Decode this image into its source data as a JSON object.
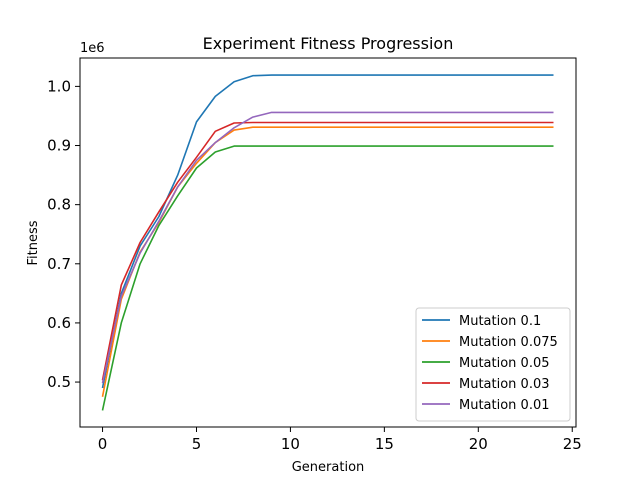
{
  "chart_data": {
    "type": "line",
    "title": "Experiment Fitness Progression",
    "xlabel": "Generation",
    "ylabel": "Fitness",
    "y_offset_label": "1e6",
    "xlim": [
      -1.2,
      25.2
    ],
    "ylim": [
      0.424,
      1.048
    ],
    "x_ticks": [
      0,
      5,
      10,
      15,
      20,
      25
    ],
    "x_tick_labels": [
      "0",
      "5",
      "10",
      "15",
      "20",
      "25"
    ],
    "y_ticks": [
      0.5,
      0.6,
      0.7,
      0.8,
      0.9,
      1.0
    ],
    "y_tick_labels": [
      "0.5",
      "0.6",
      "0.7",
      "0.8",
      "0.9",
      "1.0"
    ],
    "grid": false,
    "legend_position": "lower-right",
    "x": [
      0,
      1,
      2,
      3,
      4,
      5,
      6,
      7,
      8,
      9,
      10,
      11,
      12,
      13,
      14,
      15,
      16,
      17,
      18,
      19,
      20,
      21,
      22,
      23,
      24
    ],
    "series": [
      {
        "name": "Mutation 0.1",
        "color": "#1f77b4",
        "values": [
          0.49,
          0.65,
          0.73,
          0.78,
          0.85,
          0.94,
          0.983,
          1.008,
          1.018,
          1.019,
          1.019,
          1.019,
          1.019,
          1.019,
          1.019,
          1.019,
          1.019,
          1.019,
          1.019,
          1.019,
          1.019,
          1.019,
          1.019,
          1.019,
          1.019
        ]
      },
      {
        "name": "Mutation 0.075",
        "color": "#ff7f0e",
        "values": [
          0.475,
          0.64,
          0.72,
          0.77,
          0.83,
          0.87,
          0.905,
          0.926,
          0.931,
          0.931,
          0.931,
          0.931,
          0.931,
          0.931,
          0.931,
          0.931,
          0.931,
          0.931,
          0.931,
          0.931,
          0.931,
          0.931,
          0.931,
          0.931,
          0.931
        ]
      },
      {
        "name": "Mutation 0.05",
        "color": "#2ca02c",
        "values": [
          0.452,
          0.6,
          0.7,
          0.765,
          0.815,
          0.862,
          0.889,
          0.899,
          0.899,
          0.899,
          0.899,
          0.899,
          0.899,
          0.899,
          0.899,
          0.899,
          0.899,
          0.899,
          0.899,
          0.899,
          0.899,
          0.899,
          0.899,
          0.899,
          0.899
        ]
      },
      {
        "name": "Mutation 0.03",
        "color": "#d62728",
        "values": [
          0.503,
          0.664,
          0.736,
          0.788,
          0.838,
          0.88,
          0.924,
          0.938,
          0.939,
          0.939,
          0.939,
          0.939,
          0.939,
          0.939,
          0.939,
          0.939,
          0.939,
          0.939,
          0.939,
          0.939,
          0.939,
          0.939,
          0.939,
          0.939,
          0.939
        ]
      },
      {
        "name": "Mutation 0.01",
        "color": "#9467bd",
        "values": [
          0.498,
          0.645,
          0.718,
          0.772,
          0.83,
          0.875,
          0.905,
          0.93,
          0.948,
          0.956,
          0.956,
          0.956,
          0.956,
          0.956,
          0.956,
          0.956,
          0.956,
          0.956,
          0.956,
          0.956,
          0.956,
          0.956,
          0.956,
          0.956,
          0.956
        ]
      }
    ]
  }
}
